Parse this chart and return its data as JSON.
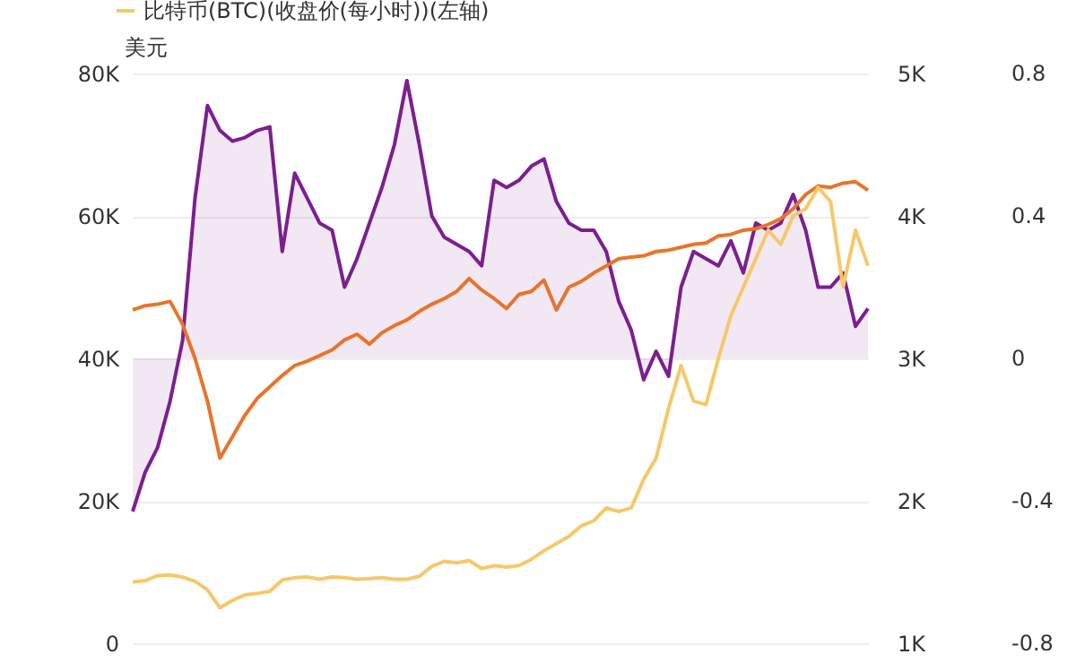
{
  "chart_data": {
    "type": "line",
    "ylabel": "美元",
    "legend": "top left",
    "grid": "y",
    "categories": [
      null,
      null,
      null,
      null,
      null,
      null,
      null,
      null,
      null,
      null,
      null,
      null,
      null,
      null,
      null,
      null,
      null,
      null,
      null,
      null,
      null,
      null,
      null,
      null,
      null,
      null,
      null,
      null,
      null,
      null,
      null,
      null,
      null,
      null,
      null,
      null,
      null,
      null,
      null,
      null,
      null,
      null,
      null,
      null,
      null,
      null,
      null,
      null,
      null,
      null,
      null,
      null,
      null,
      null,
      null,
      null,
      null,
      null,
      null,
      null
    ],
    "ylim": [
      0,
      80000
    ],
    "yticks": [
      {
        "value": 0,
        "label": "0"
      },
      {
        "value": 20000,
        "label": "20K"
      },
      {
        "value": 40000,
        "label": "40K"
      },
      {
        "value": 60000,
        "label": "60K"
      },
      {
        "value": 80000,
        "label": "80K"
      }
    ],
    "y2lim": [
      1000,
      5000
    ],
    "y2ticks": [
      {
        "value": 1000,
        "label": "1K"
      },
      {
        "value": 2000,
        "label": "2K"
      },
      {
        "value": 3000,
        "label": "3K"
      },
      {
        "value": 4000,
        "label": "4K"
      },
      {
        "value": 5000,
        "label": "5K"
      }
    ],
    "y3lim": [
      -0.8,
      0.8
    ],
    "y3ticks": [
      -0.8,
      -0.4,
      0,
      0.4,
      0.8
    ],
    "series": [
      {
        "type": "area",
        "axis": "y3",
        "color": "#7b1f8f",
        "values": [
          -0.43,
          -0.32,
          -0.25,
          -0.12,
          0.05,
          0.45,
          0.71,
          0.64,
          0.61,
          0.62,
          0.64,
          0.65,
          0.3,
          0.52,
          0.45,
          0.38,
          0.36,
          0.2,
          0.28,
          0.38,
          0.48,
          0.6,
          0.78,
          0.6,
          0.4,
          0.34,
          0.32,
          0.3,
          0.26,
          0.5,
          0.48,
          0.5,
          0.54,
          0.56,
          0.44,
          0.38,
          0.36,
          0.36,
          0.3,
          0.16,
          0.08,
          -0.06,
          0.02,
          -0.05,
          0.2,
          0.3,
          0.28,
          0.26,
          0.33,
          0.24,
          0.38,
          0.36,
          0.38,
          0.46,
          0.36,
          0.2,
          0.2,
          0.24,
          0.09,
          0.14
        ]
      },
      {
        "axis": "y2",
        "color": "#e8742a",
        "values": [
          3340,
          3370,
          3380,
          3400,
          3240,
          3000,
          2700,
          2300,
          2450,
          2600,
          2720,
          2800,
          2880,
          2950,
          2980,
          3020,
          3060,
          3130,
          3170,
          3100,
          3180,
          3230,
          3270,
          3330,
          3380,
          3420,
          3470,
          3560,
          3480,
          3420,
          3350,
          3450,
          3470,
          3550,
          3340,
          3500,
          3540,
          3600,
          3650,
          3700,
          3710,
          3720,
          3750,
          3760,
          3780,
          3800,
          3810,
          3860,
          3870,
          3900,
          3910,
          3940,
          3980,
          4050,
          4150,
          4210,
          4200,
          4230,
          4240,
          4180
        ]
      },
      {
        "name": "比特币(BTC)(收盘价(每小时))(左轴)",
        "color": "#f5c86a",
        "values": [
          8600,
          8800,
          9500,
          9600,
          9300,
          8700,
          7500,
          5000,
          6000,
          6800,
          7000,
          7300,
          8900,
          9200,
          9300,
          9000,
          9300,
          9200,
          9000,
          9100,
          9200,
          9000,
          9000,
          9400,
          10800,
          11500,
          11300,
          11600,
          10500,
          10900,
          10700,
          10900,
          11800,
          13000,
          14000,
          15000,
          16500,
          17200,
          19000,
          18500,
          19000,
          23000,
          26000,
          33000,
          39000,
          34000,
          33500,
          40000,
          46000,
          50000,
          54000,
          58000,
          56000,
          60000,
          61000,
          64000,
          62000,
          50000,
          58000,
          53000
        ]
      }
    ]
  }
}
